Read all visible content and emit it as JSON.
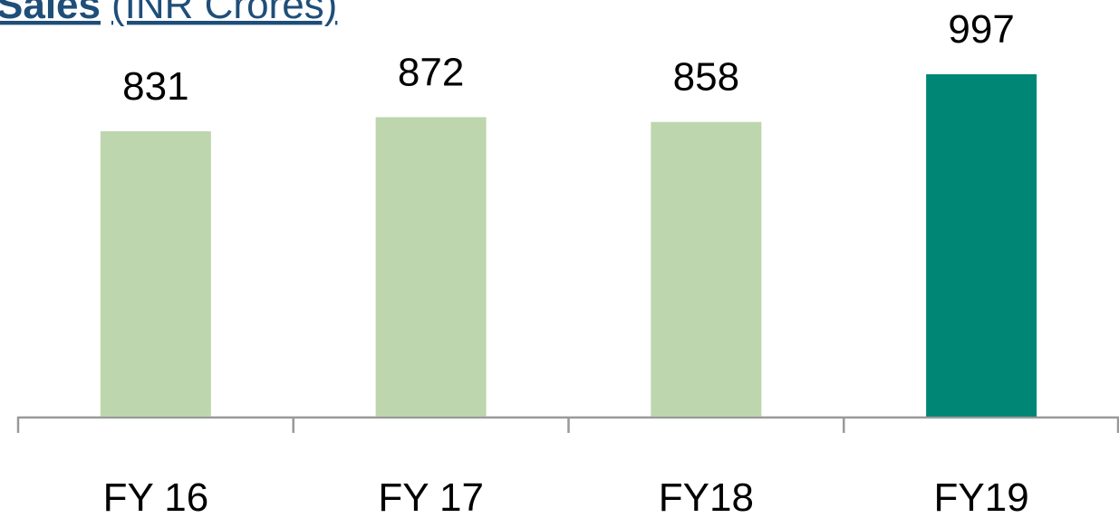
{
  "chart_data": {
    "type": "bar",
    "title": "Sales",
    "subtitle": "(INR Crores)",
    "categories": [
      "FY 16",
      "FY 17",
      "FY18",
      "FY19"
    ],
    "values": [
      831,
      872,
      858,
      997
    ],
    "colors": [
      "#bdd6ad",
      "#bdd6ad",
      "#bdd6ad",
      "#008675"
    ]
  }
}
